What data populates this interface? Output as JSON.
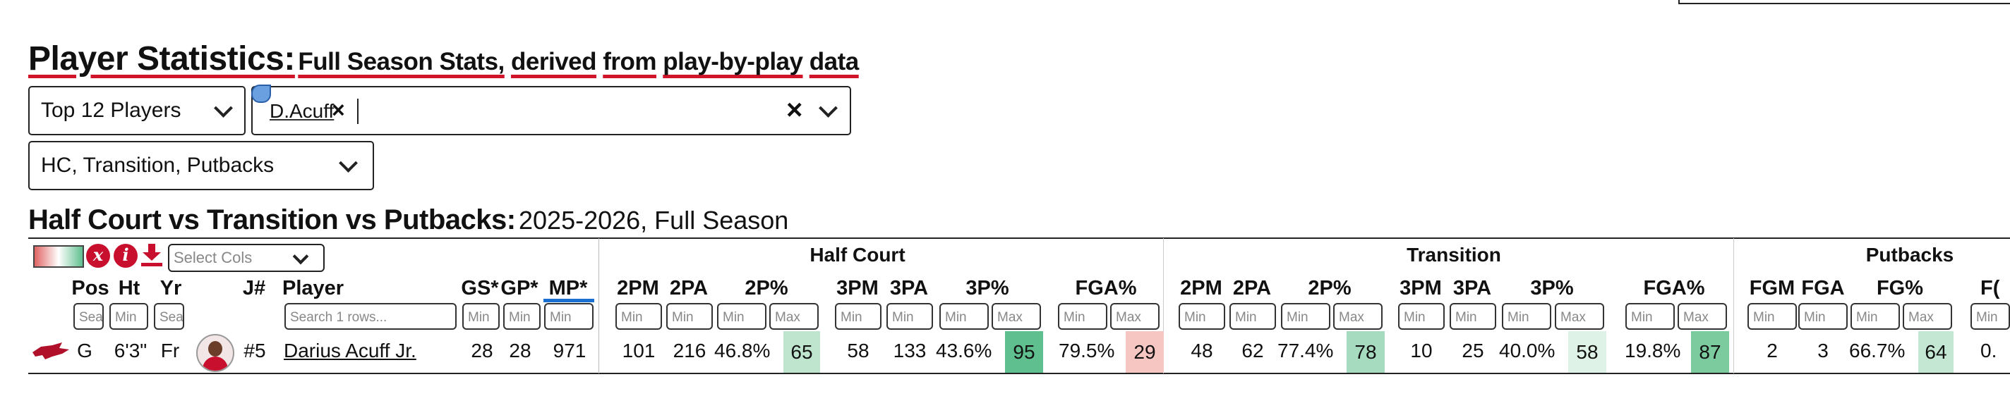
{
  "title": {
    "main": "Player Statistics:",
    "sub": "Full Season Stats, derived from play-by-play data",
    "sub_parts": [
      "Full Season Stats,",
      "derived",
      "from",
      "play-by-play",
      "data"
    ]
  },
  "controls": {
    "player_group": "Top 12 Players",
    "selected_chip": "D.Acuff",
    "chip_remove": "×",
    "clear": "×",
    "stat_categories": "HC, Transition, Putbacks"
  },
  "section": {
    "title": "Half Court vs Transition vs Putbacks:",
    "subtitle": "2025-2026, Full Season"
  },
  "toolbar": {
    "clear_icon": "x",
    "info_icon": "i",
    "select_cols_placeholder": "Select Cols"
  },
  "groups": {
    "half_court": "Half Court",
    "transition": "Transition",
    "putbacks": "Putbacks"
  },
  "columns": {
    "pos": "Pos",
    "ht": "Ht",
    "yr": "Yr",
    "jersey": "J#",
    "player": "Player",
    "gs": "GS*",
    "gp": "GP*",
    "mp": "MP*",
    "hc_2pm": "2PM",
    "hc_2pa": "2PA",
    "hc_2pp": "2P%",
    "hc_3pm": "3PM",
    "hc_3pa": "3PA",
    "hc_3pp": "3P%",
    "hc_fga": "FGA%",
    "tr_2pm": "2PM",
    "tr_2pa": "2PA",
    "tr_2pp": "2P%",
    "tr_3pm": "3PM",
    "tr_3pa": "3PA",
    "tr_3pp": "3P%",
    "tr_fga": "FGA%",
    "pb_fgm": "FGM",
    "pb_fga": "FGA",
    "pb_fgp": "FG%",
    "pb_f": "F("
  },
  "filters": {
    "min": "Min",
    "max": "Max",
    "search": "Sea",
    "player_search": "Search 1 rows..."
  },
  "row": {
    "pos": "G",
    "ht": "6'3\"",
    "yr": "Fr",
    "jersey": "#5",
    "player": "Darius Acuff Jr.",
    "gs": "28",
    "gp": "28",
    "mp": "971",
    "hc_2pm": "101",
    "hc_2pa": "216",
    "hc_2pp": "46.8%",
    "hc_2pp_rank": "65",
    "hc_3pm": "58",
    "hc_3pa": "133",
    "hc_3pp": "43.6%",
    "hc_3pp_rank": "95",
    "hc_fga": "79.5%",
    "hc_fga_rank": "29",
    "tr_2pm": "48",
    "tr_2pa": "62",
    "tr_2pp": "77.4%",
    "tr_2pp_rank": "78",
    "tr_3pm": "10",
    "tr_3pa": "25",
    "tr_3pp": "40.0%",
    "tr_3pp_rank": "58",
    "tr_fga": "19.8%",
    "tr_fga_rank": "87",
    "pb_fgm": "2",
    "pb_fga": "3",
    "pb_fgp": "66.7%",
    "pb_fgp_rank": "64",
    "pb_f": "0."
  },
  "colors": {
    "accent_red": "#d0152a",
    "rank_65": "#bfe5cf",
    "rank_95": "#5fbf8e",
    "rank_29": "#f6c6c2",
    "rank_78": "#a7dbbf",
    "rank_58": "#dff2e7",
    "rank_87": "#7ccb9f",
    "rank_64": "#c4e7d3"
  },
  "icons": {
    "team_logo": "razorback-logo-icon",
    "gradient": "color-scale-icon",
    "download": "download-icon",
    "avatar": "player-headshot-icon"
  }
}
